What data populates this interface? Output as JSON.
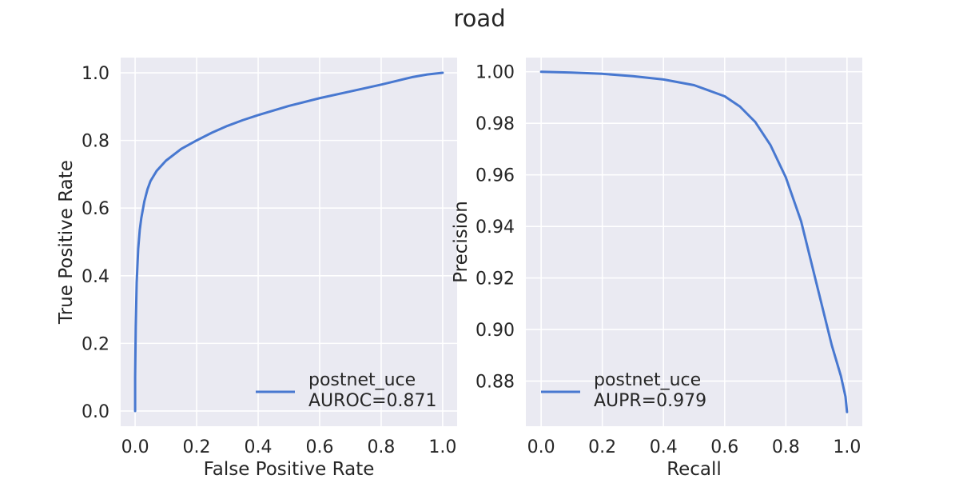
{
  "title": "road",
  "chart_data": [
    {
      "type": "line",
      "xlabel": "False Positive Rate",
      "ylabel": "True Positive Rate",
      "xlim": [
        -0.047,
        1.047
      ],
      "ylim": [
        -0.045,
        1.045
      ],
      "xticks": [
        0.0,
        0.2,
        0.4,
        0.6,
        0.8,
        1.0
      ],
      "xtick_labels": [
        "0.0",
        "0.2",
        "0.4",
        "0.6",
        "0.8",
        "1.0"
      ],
      "yticks": [
        0.0,
        0.2,
        0.4,
        0.6,
        0.8,
        1.0
      ],
      "ytick_labels": [
        "0.0",
        "0.2",
        "0.4",
        "0.6",
        "0.8",
        "1.0"
      ],
      "grid": true,
      "legend_position": "lower-right",
      "series": [
        {
          "legend_lines": [
            "postnet_uce",
            "AUROC=0.871"
          ],
          "color": "#4878d0",
          "x": [
            0.0,
            0.0,
            0.002,
            0.005,
            0.01,
            0.015,
            0.02,
            0.03,
            0.04,
            0.05,
            0.07,
            0.1,
            0.15,
            0.2,
            0.25,
            0.3,
            0.35,
            0.4,
            0.5,
            0.6,
            0.7,
            0.8,
            0.85,
            0.9,
            0.95,
            1.0
          ],
          "y": [
            0.0,
            0.1,
            0.25,
            0.38,
            0.48,
            0.535,
            0.57,
            0.62,
            0.655,
            0.68,
            0.71,
            0.74,
            0.775,
            0.8,
            0.823,
            0.843,
            0.86,
            0.875,
            0.902,
            0.925,
            0.945,
            0.965,
            0.976,
            0.987,
            0.995,
            1.0
          ]
        }
      ]
    },
    {
      "type": "line",
      "xlabel": "Recall",
      "ylabel": "Precision",
      "xlim": [
        -0.05,
        1.05
      ],
      "ylim": [
        0.8625,
        1.0055
      ],
      "xticks": [
        0.0,
        0.2,
        0.4,
        0.6,
        0.8,
        1.0
      ],
      "xtick_labels": [
        "0.0",
        "0.2",
        "0.4",
        "0.6",
        "0.8",
        "1.0"
      ],
      "yticks": [
        0.88,
        0.9,
        0.92,
        0.94,
        0.96,
        0.98,
        1.0
      ],
      "ytick_labels": [
        "0.88",
        "0.90",
        "0.92",
        "0.94",
        "0.96",
        "0.98",
        "1.00"
      ],
      "grid": true,
      "legend_position": "lower-left",
      "series": [
        {
          "legend_lines": [
            "postnet_uce",
            "AUPR=0.979"
          ],
          "color": "#4878d0",
          "x": [
            0.0,
            0.1,
            0.2,
            0.3,
            0.4,
            0.5,
            0.6,
            0.65,
            0.7,
            0.75,
            0.8,
            0.85,
            0.9,
            0.95,
            0.98,
            0.995,
            1.0
          ],
          "y": [
            1.0,
            0.9997,
            0.9992,
            0.9983,
            0.997,
            0.9948,
            0.9905,
            0.9865,
            0.9805,
            0.9715,
            0.959,
            0.942,
            0.918,
            0.894,
            0.882,
            0.874,
            0.868
          ]
        }
      ]
    }
  ]
}
